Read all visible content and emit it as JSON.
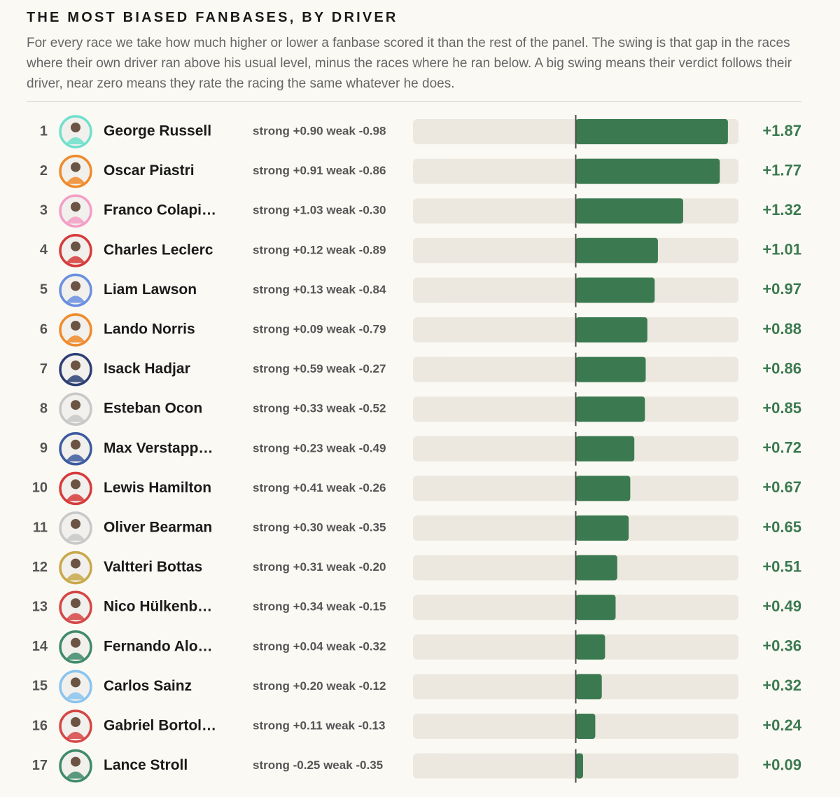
{
  "chart_data": {
    "type": "bar",
    "title": "THE MOST BIASED FANBASES, BY DRIVER",
    "subtitle": "For every race we take how much higher or lower a fanbase scored it than the rest of the panel. The swing is that gap in the races where their own driver ran above his usual level, minus the races where he ran below. A big swing means their verdict follows their driver, near zero means they rate the racing the same whatever he does.",
    "ranks": [
      1,
      2,
      3,
      4,
      5,
      6,
      7,
      8,
      9,
      10,
      11,
      12,
      13,
      14,
      15,
      16,
      17
    ],
    "categories": [
      "George Russell",
      "Oscar Piastri",
      "Franco Colapi…",
      "Charles Leclerc",
      "Liam Lawson",
      "Lando Norris",
      "Isack Hadjar",
      "Esteban Ocon",
      "Max Verstapp…",
      "Lewis Hamilton",
      "Oliver Bearman",
      "Valtteri Bottas",
      "Nico Hülkenb…",
      "Fernando Alo…",
      "Carlos Sainz",
      "Gabriel Bortol…",
      "Lance Stroll"
    ],
    "details": [
      "strong +0.90 weak -0.98",
      "strong +0.91 weak -0.86",
      "strong +1.03 weak -0.30",
      "strong +0.12 weak -0.89",
      "strong +0.13 weak -0.84",
      "strong +0.09 weak -0.79",
      "strong +0.59 weak -0.27",
      "strong +0.33 weak -0.52",
      "strong +0.23 weak -0.49",
      "strong +0.41 weak -0.26",
      "strong +0.30 weak -0.35",
      "strong +0.31 weak -0.20",
      "strong +0.34 weak -0.15",
      "strong +0.04 weak -0.32",
      "strong +0.20 weak -0.12",
      "strong +0.11 weak -0.13",
      "strong -0.25 weak -0.35"
    ],
    "values": [
      1.87,
      1.77,
      1.32,
      1.01,
      0.97,
      0.88,
      0.86,
      0.85,
      0.72,
      0.67,
      0.65,
      0.51,
      0.49,
      0.36,
      0.32,
      0.24,
      0.09
    ],
    "value_labels": [
      "+1.87",
      "+1.77",
      "+1.32",
      "+1.01",
      "+0.97",
      "+0.88",
      "+0.86",
      "+0.85",
      "+0.72",
      "+0.67",
      "+0.65",
      "+0.51",
      "+0.49",
      "+0.36",
      "+0.32",
      "+0.24",
      "+0.09"
    ],
    "ring_colors": [
      "#6fe0cc",
      "#f08a2c",
      "#f39ec6",
      "#d63b3b",
      "#6a8fe0",
      "#f08a2c",
      "#2c3f74",
      "#c8c8c8",
      "#3c5aa0",
      "#d63b3b",
      "#c8c8c8",
      "#c9a84a",
      "#d64545",
      "#3f8a6a",
      "#8ac4ef",
      "#d64545",
      "#3f8a6a"
    ],
    "color": "#3b7a50",
    "xlim": [
      -2,
      2
    ]
  }
}
